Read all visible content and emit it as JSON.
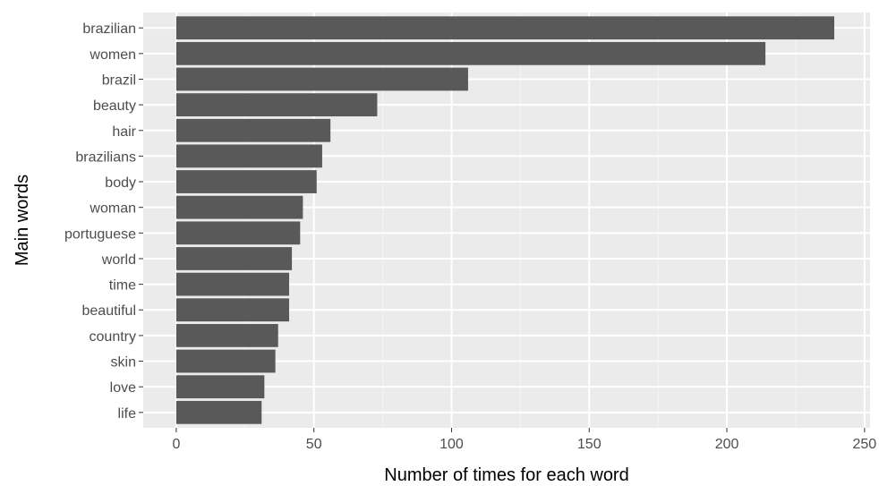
{
  "chart_data": {
    "type": "bar",
    "orientation": "horizontal",
    "title": "",
    "xlabel": "Number of times for each word",
    "ylabel": "Main words",
    "xlim": [
      -12,
      252
    ],
    "xticks": [
      0,
      50,
      100,
      150,
      200,
      250
    ],
    "grid": true,
    "legend": "none",
    "categories": [
      "brazilian",
      "women",
      "brazil",
      "beauty",
      "hair",
      "brazilians",
      "body",
      "woman",
      "portuguese",
      "world",
      "time",
      "beautiful",
      "country",
      "skin",
      "love",
      "life"
    ],
    "values": [
      239,
      214,
      106,
      73,
      56,
      53,
      51,
      46,
      45,
      42,
      41,
      41,
      37,
      36,
      32,
      31
    ],
    "colors": {
      "bar": "#595959",
      "panel_background": "#ebebeb",
      "grid_major": "#ffffff",
      "grid_minor": "#f5f5f5",
      "tick_text": "#4d4d4d",
      "tick_mark": "#333333",
      "title_text": "#000000"
    }
  }
}
